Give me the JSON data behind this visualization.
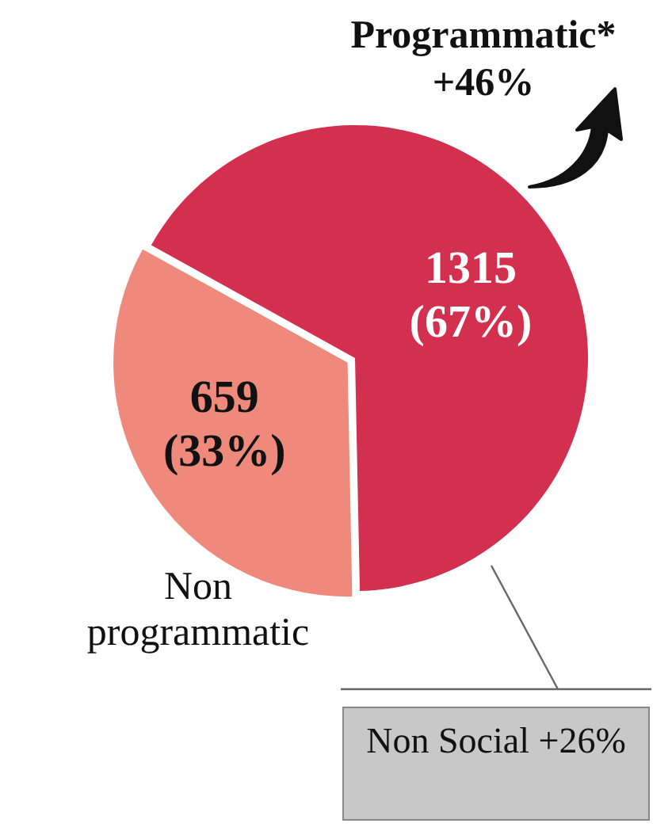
{
  "chart_data": {
    "type": "pie",
    "categories": [
      "Programmatic*",
      "Non programmatic"
    ],
    "values": [
      1315,
      659
    ],
    "colors": [
      "#d3304f",
      "#ee897b"
    ],
    "value_labels": [
      "1315 (67%)",
      "659 (33%)"
    ],
    "annotations": [
      "+46%",
      "Non Social +26%"
    ],
    "legend": false
  }
}
